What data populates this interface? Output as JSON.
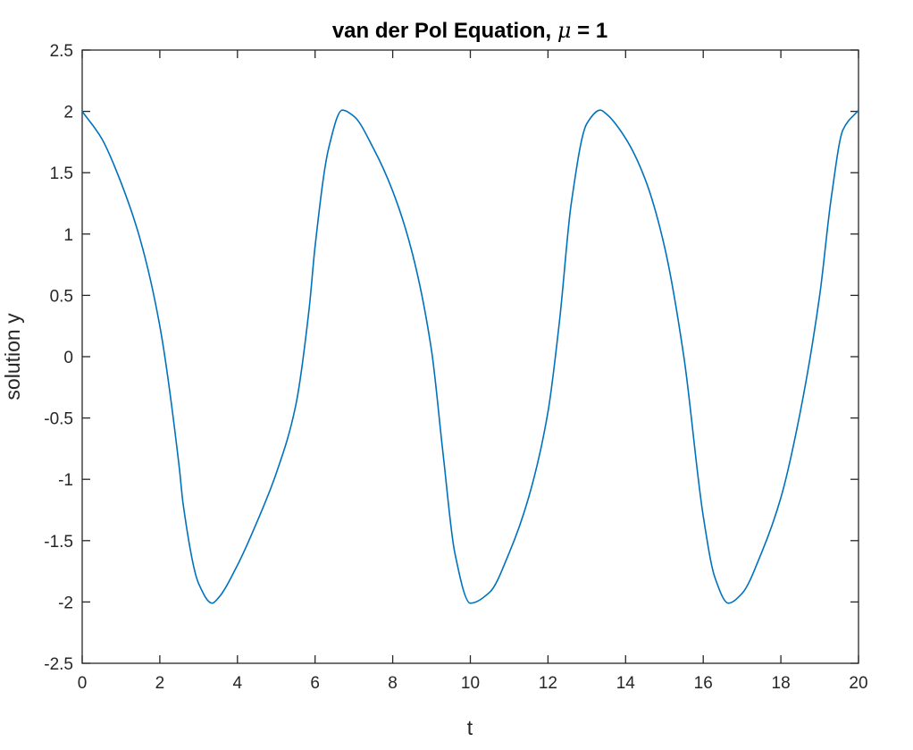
{
  "chart_data": {
    "type": "line",
    "title_prefix": "van der Pol Equation, ",
    "title_symbol": "μ",
    "title_suffix": " = 1",
    "xlabel": "t",
    "ylabel": "solution y",
    "xlim": [
      0,
      20
    ],
    "ylim": [
      -2.5,
      2.5
    ],
    "xticks": [
      "0",
      "2",
      "4",
      "6",
      "8",
      "10",
      "12",
      "14",
      "16",
      "18",
      "20"
    ],
    "yticks": [
      "-2.5",
      "-2",
      "-1.5",
      "-1",
      "-0.5",
      "0",
      "0.5",
      "1",
      "1.5",
      "2",
      "2.5"
    ],
    "grid": false,
    "line_color": "#0072BD",
    "series": [
      {
        "x": [
          0,
          0.5,
          1.0,
          1.5,
          2.0,
          2.5,
          2.6,
          3.0,
          3.35,
          3.5,
          4.0,
          4.5,
          5.0,
          5.5,
          5.85,
          6.0,
          6.35,
          6.7,
          7.0,
          7.5,
          8.0,
          8.5,
          9.0,
          9.3,
          9.6,
          10.0,
          10.5,
          11.0,
          11.5,
          12.0,
          12.3,
          12.6,
          13.0,
          13.35,
          13.5,
          14.0,
          14.5,
          15.0,
          15.5,
          16.0,
          16.3,
          16.65,
          17.0,
          17.5,
          18.0,
          18.5,
          19.0,
          19.3,
          19.6,
          20.0
        ],
        "y": [
          2.0,
          1.78,
          1.42,
          0.95,
          0.25,
          -0.9,
          -1.2,
          -1.85,
          -2.01,
          -1.97,
          -1.7,
          -1.35,
          -0.95,
          -0.4,
          0.4,
          0.9,
          1.7,
          2.01,
          1.96,
          1.7,
          1.35,
          0.85,
          0.05,
          -0.8,
          -1.6,
          -2.01,
          -1.92,
          -1.6,
          -1.15,
          -0.45,
          0.3,
          1.25,
          1.9,
          2.01,
          1.98,
          1.78,
          1.45,
          0.9,
          0.0,
          -1.3,
          -1.8,
          -2.01,
          -1.93,
          -1.6,
          -1.15,
          -0.45,
          0.5,
          1.3,
          1.85,
          2.01
        ]
      }
    ]
  }
}
